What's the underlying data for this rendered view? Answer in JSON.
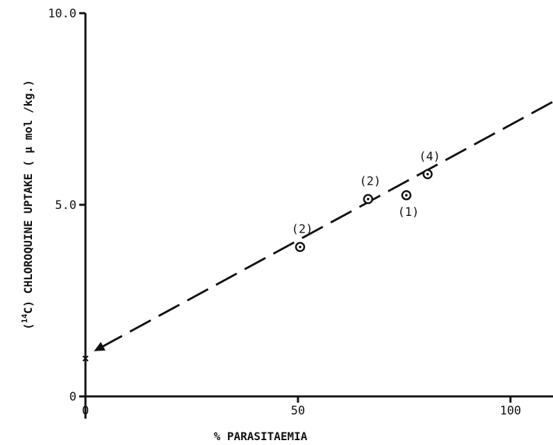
{
  "chart_data": {
    "type": "scatter",
    "title": "",
    "xlabel": "% PARASITAEMIA",
    "ylabel": {
      "open": "(",
      "superscript": "14",
      "rest": "C) CHLOROQUINE UPTAKE ( μ mol /kg.)"
    },
    "xlim": [
      0,
      110
    ],
    "ylim": [
      0,
      10
    ],
    "x_ticks": [
      {
        "value": 0,
        "label": "0"
      },
      {
        "value": 50,
        "label": "50"
      },
      {
        "value": 100,
        "label": "100"
      }
    ],
    "y_ticks": [
      {
        "value": 0,
        "label": "0"
      },
      {
        "value": 5,
        "label": "5.0"
      },
      {
        "value": 10,
        "label": "10.0"
      }
    ],
    "grid": false,
    "points": [
      {
        "x": 50.5,
        "y": 3.9,
        "label": "(2)"
      },
      {
        "x": 66.5,
        "y": 5.15,
        "label": "(2)"
      },
      {
        "x": 75.5,
        "y": 5.25,
        "label": "(1)"
      },
      {
        "x": 80.5,
        "y": 5.8,
        "label": "(4)"
      }
    ],
    "intercept_marker": {
      "x": 0,
      "y": 1.0,
      "symbol": "×"
    },
    "fit_line": {
      "style": "dashed",
      "x": [
        2,
        111
      ],
      "y": [
        1.18,
        7.75
      ],
      "arrow_end": "start"
    }
  }
}
